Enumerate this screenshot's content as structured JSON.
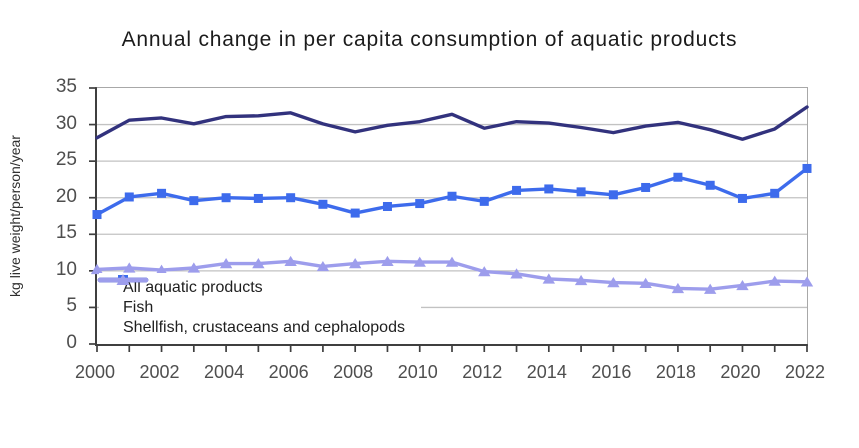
{
  "title": "Annual change in per capita consumption of aquatic products",
  "chart_data": {
    "type": "line",
    "title": "Annual change in per capita consumption of aquatic products",
    "xlabel": "",
    "ylabel": "kg live weight/person/year",
    "ylim": [
      0,
      35
    ],
    "ytick_step": 5,
    "y_ticks": [
      0,
      5,
      10,
      15,
      20,
      25,
      30,
      35
    ],
    "x": [
      2000,
      2001,
      2002,
      2003,
      2004,
      2005,
      2006,
      2007,
      2008,
      2009,
      2010,
      2011,
      2012,
      2013,
      2014,
      2015,
      2016,
      2017,
      2018,
      2019,
      2020,
      2021,
      2022
    ],
    "x_tick_labels": [
      "2000",
      "2002",
      "2004",
      "2006",
      "2008",
      "2010",
      "2012",
      "2014",
      "2016",
      "2018",
      "2020",
      "2022"
    ],
    "grid": "horizontal gridlines on",
    "legend_position": "inside bottom-left",
    "series": [
      {
        "name": "All aquatic products",
        "color": "#32327D",
        "marker": "none",
        "values": [
          28.2,
          30.6,
          30.9,
          30.1,
          31.1,
          31.2,
          31.6,
          30.1,
          29.0,
          29.9,
          30.4,
          31.4,
          29.5,
          30.4,
          30.2,
          29.6,
          28.9,
          29.8,
          30.3,
          29.3,
          28.0,
          29.4,
          32.4
        ]
      },
      {
        "name": "Fish",
        "color": "#3D6BEC",
        "marker": "square",
        "values": [
          17.7,
          20.1,
          20.6,
          19.6,
          20.0,
          19.9,
          20.0,
          19.1,
          17.9,
          18.8,
          19.2,
          20.2,
          19.5,
          21.0,
          21.2,
          20.8,
          20.4,
          21.4,
          22.8,
          21.7,
          19.9,
          20.6,
          24.0
        ]
      },
      {
        "name": "Shellfish, crustaceans and cephalopods",
        "color": "#9D9DEC",
        "marker": "triangle",
        "values": [
          10.2,
          10.4,
          10.1,
          10.4,
          11.0,
          11.0,
          11.3,
          10.6,
          11.0,
          11.3,
          11.2,
          11.2,
          9.9,
          9.6,
          8.9,
          8.7,
          8.4,
          8.3,
          7.6,
          7.5,
          8.0,
          8.6,
          8.5
        ]
      }
    ],
    "colors": {
      "grid": "#C2C2C2",
      "axis": "#3F3F3F",
      "tick_text": "#4E4E4E"
    }
  }
}
